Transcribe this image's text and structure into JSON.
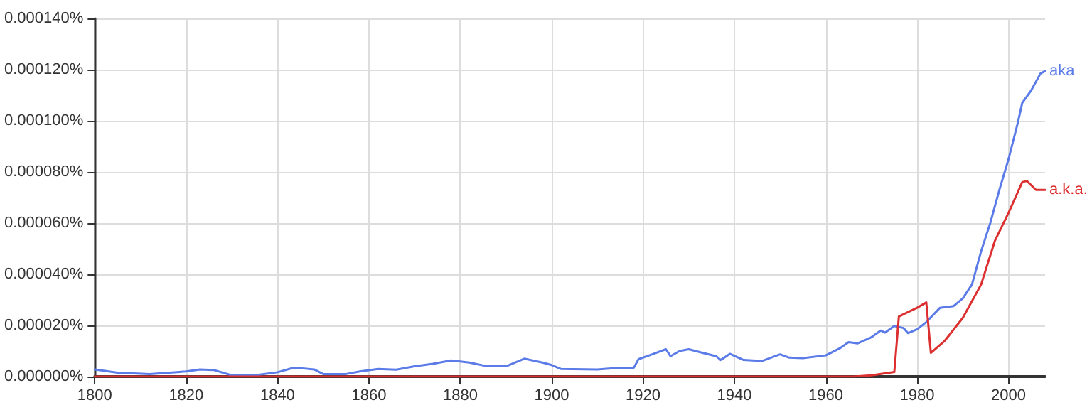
{
  "chart_data": {
    "type": "line",
    "xlim": [
      1800,
      2008
    ],
    "xticks": [
      1800,
      1820,
      1840,
      1860,
      1880,
      1900,
      1920,
      1940,
      1960,
      1980,
      2000
    ],
    "ylim": [
      0,
      0.00014
    ],
    "yticks": [
      {
        "value": 0,
        "label": "0.000000%"
      },
      {
        "value": 2e-05,
        "label": "0.000020%"
      },
      {
        "value": 4e-05,
        "label": "0.000040%"
      },
      {
        "value": 6e-05,
        "label": "0.000060%"
      },
      {
        "value": 8e-05,
        "label": "0.000080%"
      },
      {
        "value": 0.0001,
        "label": "0.000100%"
      },
      {
        "value": 0.00012,
        "label": "0.000120%"
      },
      {
        "value": 0.00014,
        "label": "0.000140%"
      }
    ],
    "grid": true,
    "legend": false,
    "marker": "none",
    "line_style": "solid",
    "series": [
      {
        "name": "aka",
        "color": "#5b7be8",
        "x": [
          1800,
          1805,
          1812,
          1820,
          1823,
          1826,
          1830,
          1835,
          1840,
          1843,
          1845,
          1848,
          1850,
          1855,
          1858,
          1862,
          1866,
          1870,
          1874,
          1878,
          1882,
          1886,
          1890,
          1894,
          1898,
          1900,
          1902,
          1910,
          1915,
          1918,
          1919,
          1922,
          1925,
          1926,
          1928,
          1930,
          1933,
          1936,
          1937,
          1939,
          1942,
          1946,
          1950,
          1952,
          1955,
          1960,
          1963,
          1965,
          1967,
          1970,
          1972,
          1973,
          1975,
          1977,
          1978,
          1980,
          1982,
          1985,
          1988,
          1990,
          1992,
          1994,
          1996,
          1998,
          2000,
          2002,
          2003,
          2005,
          2007,
          2008
        ],
        "values": [
          2.8e-06,
          1.5e-06,
          1e-06,
          2e-06,
          2.8e-06,
          2.6e-06,
          5e-07,
          5e-07,
          1.7e-06,
          3.2e-06,
          3.3e-06,
          2.8e-06,
          1e-06,
          1e-06,
          2e-06,
          3e-06,
          2.7e-06,
          4e-06,
          5e-06,
          6.3e-06,
          5.5e-06,
          4e-06,
          4e-06,
          7e-06,
          5.5e-06,
          4.5e-06,
          3e-06,
          2.8e-06,
          3.5e-06,
          3.5e-06,
          6.8e-06,
          8.7e-06,
          1.07e-05,
          8e-06,
          1e-05,
          1.07e-05,
          9.3e-06,
          8e-06,
          6.5e-06,
          8.9e-06,
          6.5e-06,
          6.1e-06,
          8.7e-06,
          7.4e-06,
          7.2e-06,
          8.3e-06,
          1.1e-05,
          1.35e-05,
          1.3e-05,
          1.54e-05,
          1.8e-05,
          1.72e-05,
          1.98e-05,
          1.9e-05,
          1.7e-05,
          1.85e-05,
          2.13e-05,
          2.69e-05,
          2.76e-05,
          3.06e-05,
          3.6e-05,
          4.9e-05,
          6e-05,
          7.3e-05,
          8.5e-05,
          9.9e-05,
          0.000107,
          0.000112,
          0.0001185,
          0.0001194
        ]
      },
      {
        "name": "a.k.a.",
        "color": "#dc3030",
        "x": [
          1800,
          1966,
          1970,
          1975,
          1976,
          1980,
          1982,
          1983,
          1986,
          1990,
          1994,
          1997,
          2000,
          2003,
          2004,
          2006,
          2008
        ],
        "values": [
          0,
          0,
          5e-07,
          1.8e-06,
          2.35e-05,
          2.69e-05,
          2.9e-05,
          9.3e-06,
          1.39e-05,
          2.3e-05,
          3.6e-05,
          5.3e-05,
          6.4e-05,
          7.6e-05,
          7.65e-05,
          7.3e-05,
          7.3e-05
        ]
      }
    ]
  }
}
